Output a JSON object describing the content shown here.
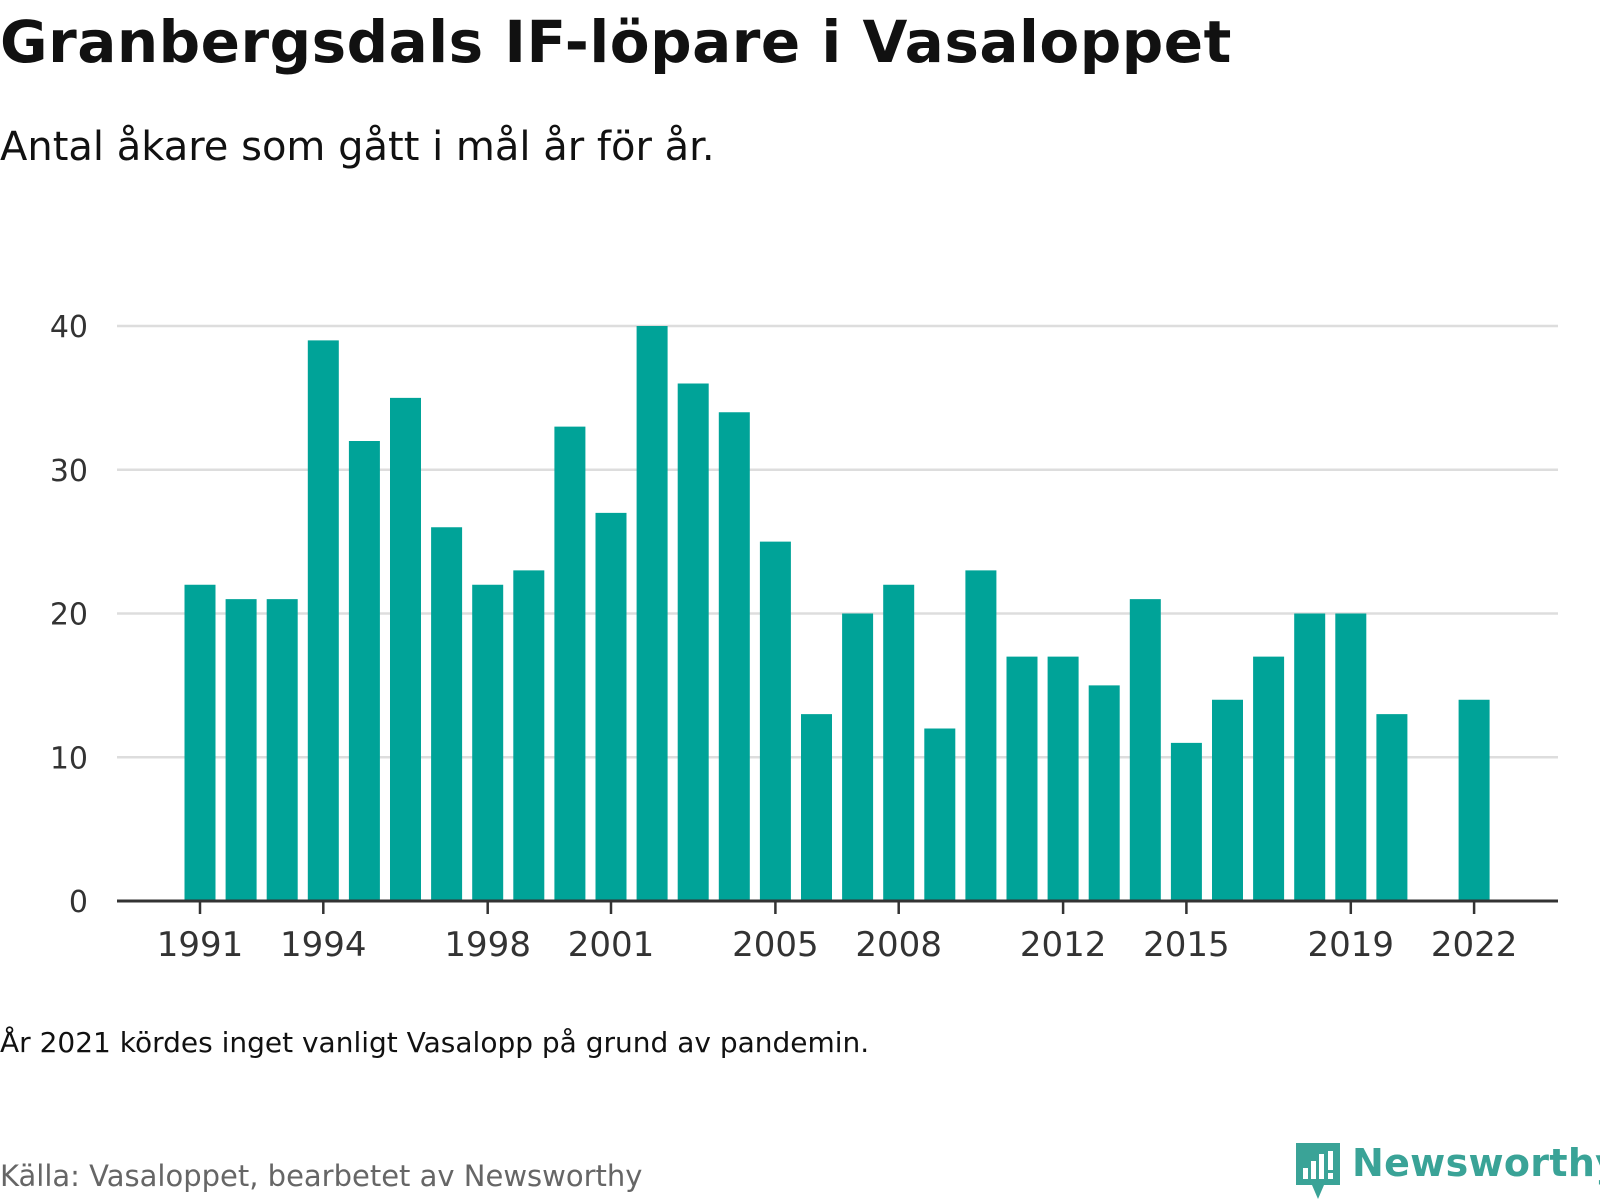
{
  "title": "Granbergsdals IF-löpare i Vasaloppet",
  "subtitle": "Antal åkare som gått i mål år för år.",
  "note": "År 2021 kördes inget vanligt Vasalopp på grund av pandemin.",
  "source": "Källa: Vasaloppet, bearbetet av Newsworthy",
  "logo": {
    "text": "Newsworthy",
    "icon": "newsworthy-logo-icon",
    "color": "#3aa397"
  },
  "colors": {
    "bar": "#00a398",
    "grid": "#dddddd",
    "axis": "#333333"
  },
  "chart_data": {
    "type": "bar",
    "categories": [
      "1991",
      "1992",
      "1993",
      "1994",
      "1995",
      "1996",
      "1997",
      "1998",
      "1999",
      "2000",
      "2001",
      "2002",
      "2003",
      "2004",
      "2005",
      "2006",
      "2007",
      "2008",
      "2009",
      "2010",
      "2011",
      "2012",
      "2013",
      "2014",
      "2015",
      "2016",
      "2017",
      "2018",
      "2019",
      "2020",
      "2021",
      "2022"
    ],
    "values": [
      22,
      21,
      21,
      39,
      32,
      35,
      26,
      22,
      23,
      33,
      27,
      40,
      36,
      34,
      25,
      13,
      20,
      22,
      12,
      23,
      17,
      17,
      15,
      21,
      11,
      14,
      17,
      20,
      20,
      13,
      null,
      14
    ],
    "xtick_labels": [
      "1991",
      "1994",
      "1998",
      "2001",
      "2005",
      "2008",
      "2012",
      "2015",
      "2019",
      "2022"
    ],
    "yticks": [
      0,
      10,
      20,
      30,
      40
    ],
    "ylim": [
      0,
      40
    ],
    "xlabel": "",
    "ylabel": "",
    "grid": true
  }
}
